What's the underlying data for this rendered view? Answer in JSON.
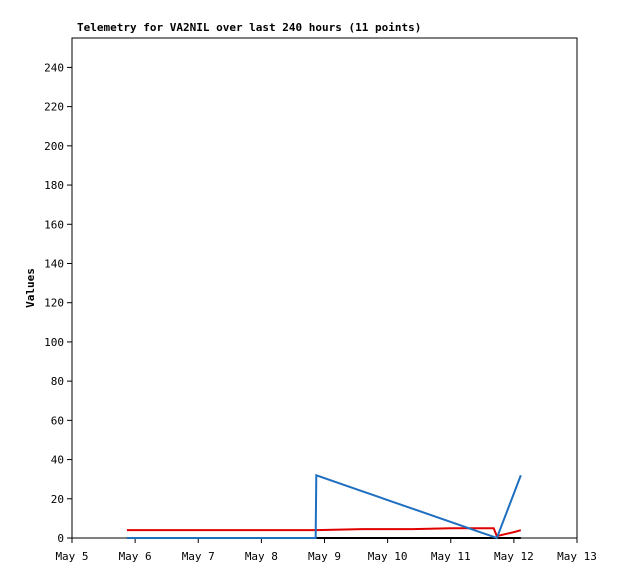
{
  "chart_data": {
    "type": "line",
    "title": "Telemetry for VA2NIL over last 240 hours (11 points)",
    "y_label": "Values",
    "x": [
      5.87,
      8.86,
      8.87,
      9.6,
      10.4,
      11.0,
      11.5,
      11.68,
      11.73,
      12.0,
      12.11
    ],
    "series": [
      {
        "name": "black",
        "color": "#000000",
        "values": [
          0,
          0,
          0,
          0,
          0,
          0,
          0,
          0,
          0,
          0,
          0
        ]
      },
      {
        "name": "red",
        "color": "#e00000",
        "values": [
          4,
          4,
          4,
          4.5,
          4.5,
          5,
          5,
          5,
          1,
          3,
          4
        ]
      },
      {
        "name": "blue",
        "color": "#1f6fc0",
        "values": [
          0,
          0,
          32,
          23.8,
          14.9,
          8.2,
          2.6,
          0.6,
          0,
          22.7,
          32
        ]
      }
    ],
    "xlim": [
      5,
      13
    ],
    "xticks": [
      {
        "value": 5,
        "label": "May 5"
      },
      {
        "value": 6,
        "label": "May 6"
      },
      {
        "value": 7,
        "label": "May 7"
      },
      {
        "value": 8,
        "label": "May 8"
      },
      {
        "value": 9,
        "label": "May 9"
      },
      {
        "value": 10,
        "label": "May 10"
      },
      {
        "value": 11,
        "label": "May 11"
      },
      {
        "value": 12,
        "label": "May 12"
      },
      {
        "value": 13,
        "label": "May 13"
      }
    ],
    "ylim": [
      0,
      255
    ],
    "yticks": [
      0,
      20,
      40,
      60,
      80,
      100,
      120,
      140,
      160,
      180,
      200,
      220,
      240
    ],
    "grid": false
  }
}
